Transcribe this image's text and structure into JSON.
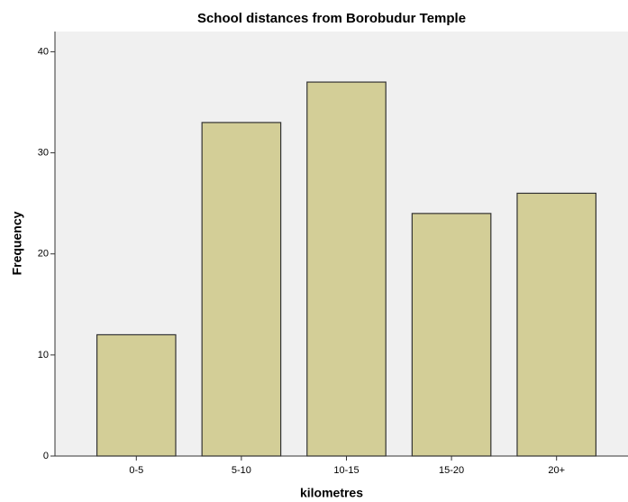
{
  "chart_data": {
    "type": "bar",
    "title": "School distances from Borobudur Temple",
    "x_label": "kilometres",
    "y_label": "Frequency",
    "categories": [
      "0-5",
      "5-10",
      "10-15",
      "15-20",
      "20+"
    ],
    "values": [
      12,
      33,
      37,
      24,
      26
    ],
    "color": "#d3ce97",
    "ylim": [
      0,
      42
    ],
    "yticks": [
      0,
      10,
      20,
      30,
      40
    ],
    "grid": false
  }
}
